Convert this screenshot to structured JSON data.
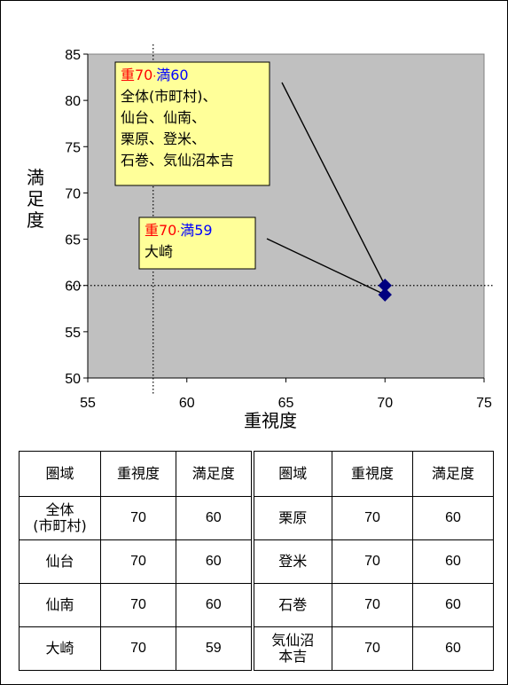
{
  "chart_data": {
    "type": "scatter",
    "xlabel": "重視度",
    "ylabel": "満足度",
    "xlim": [
      55,
      75
    ],
    "ylim": [
      50,
      85
    ],
    "xticks": [
      55,
      60,
      65,
      70,
      75
    ],
    "yticks": [
      50,
      55,
      60,
      65,
      70,
      75,
      80,
      85
    ],
    "reference_lines": {
      "x": 58.3,
      "y": 60
    },
    "grid": false,
    "series": [
      {
        "points": [
          {
            "x": 70,
            "y": 60
          },
          {
            "x": 70,
            "y": 59
          }
        ]
      }
    ],
    "annotations": [
      {
        "label_weight": "重70",
        "sep": "·",
        "label_satisfaction": "満60",
        "lines": [
          "全体(市町村)、",
          "仙台、仙南、",
          "栗原、登米、",
          "石巻、気仙沼本吉"
        ],
        "target": {
          "x": 70,
          "y": 60
        }
      },
      {
        "label_weight": "重70",
        "sep": "·",
        "label_satisfaction": "満59",
        "lines": [
          "大崎"
        ],
        "target": {
          "x": 70,
          "y": 59
        }
      }
    ],
    "colors": {
      "plot_bg": "#c0c0c0",
      "marker": "#000080",
      "callout_bg": "#ffff99",
      "weight_text": "#ff0000",
      "satisfaction_text": "#0000ff"
    }
  },
  "table": {
    "headers": [
      "圏域",
      "重視度",
      "満足度",
      "圏域",
      "重視度",
      "満足度"
    ],
    "rows": [
      {
        "left": {
          "area": "全体\n(市町村)",
          "w": "70",
          "s": "60"
        },
        "right": {
          "area": "栗原",
          "w": "70",
          "s": "60"
        }
      },
      {
        "left": {
          "area": "仙台",
          "w": "70",
          "s": "60"
        },
        "right": {
          "area": "登米",
          "w": "70",
          "s": "60"
        }
      },
      {
        "left": {
          "area": "仙南",
          "w": "70",
          "s": "60"
        },
        "right": {
          "area": "石巻",
          "w": "70",
          "s": "60"
        }
      },
      {
        "left": {
          "area": "大崎",
          "w": "70",
          "s": "59"
        },
        "right": {
          "area": "気仙沼\n本吉",
          "w": "70",
          "s": "60"
        }
      }
    ]
  }
}
